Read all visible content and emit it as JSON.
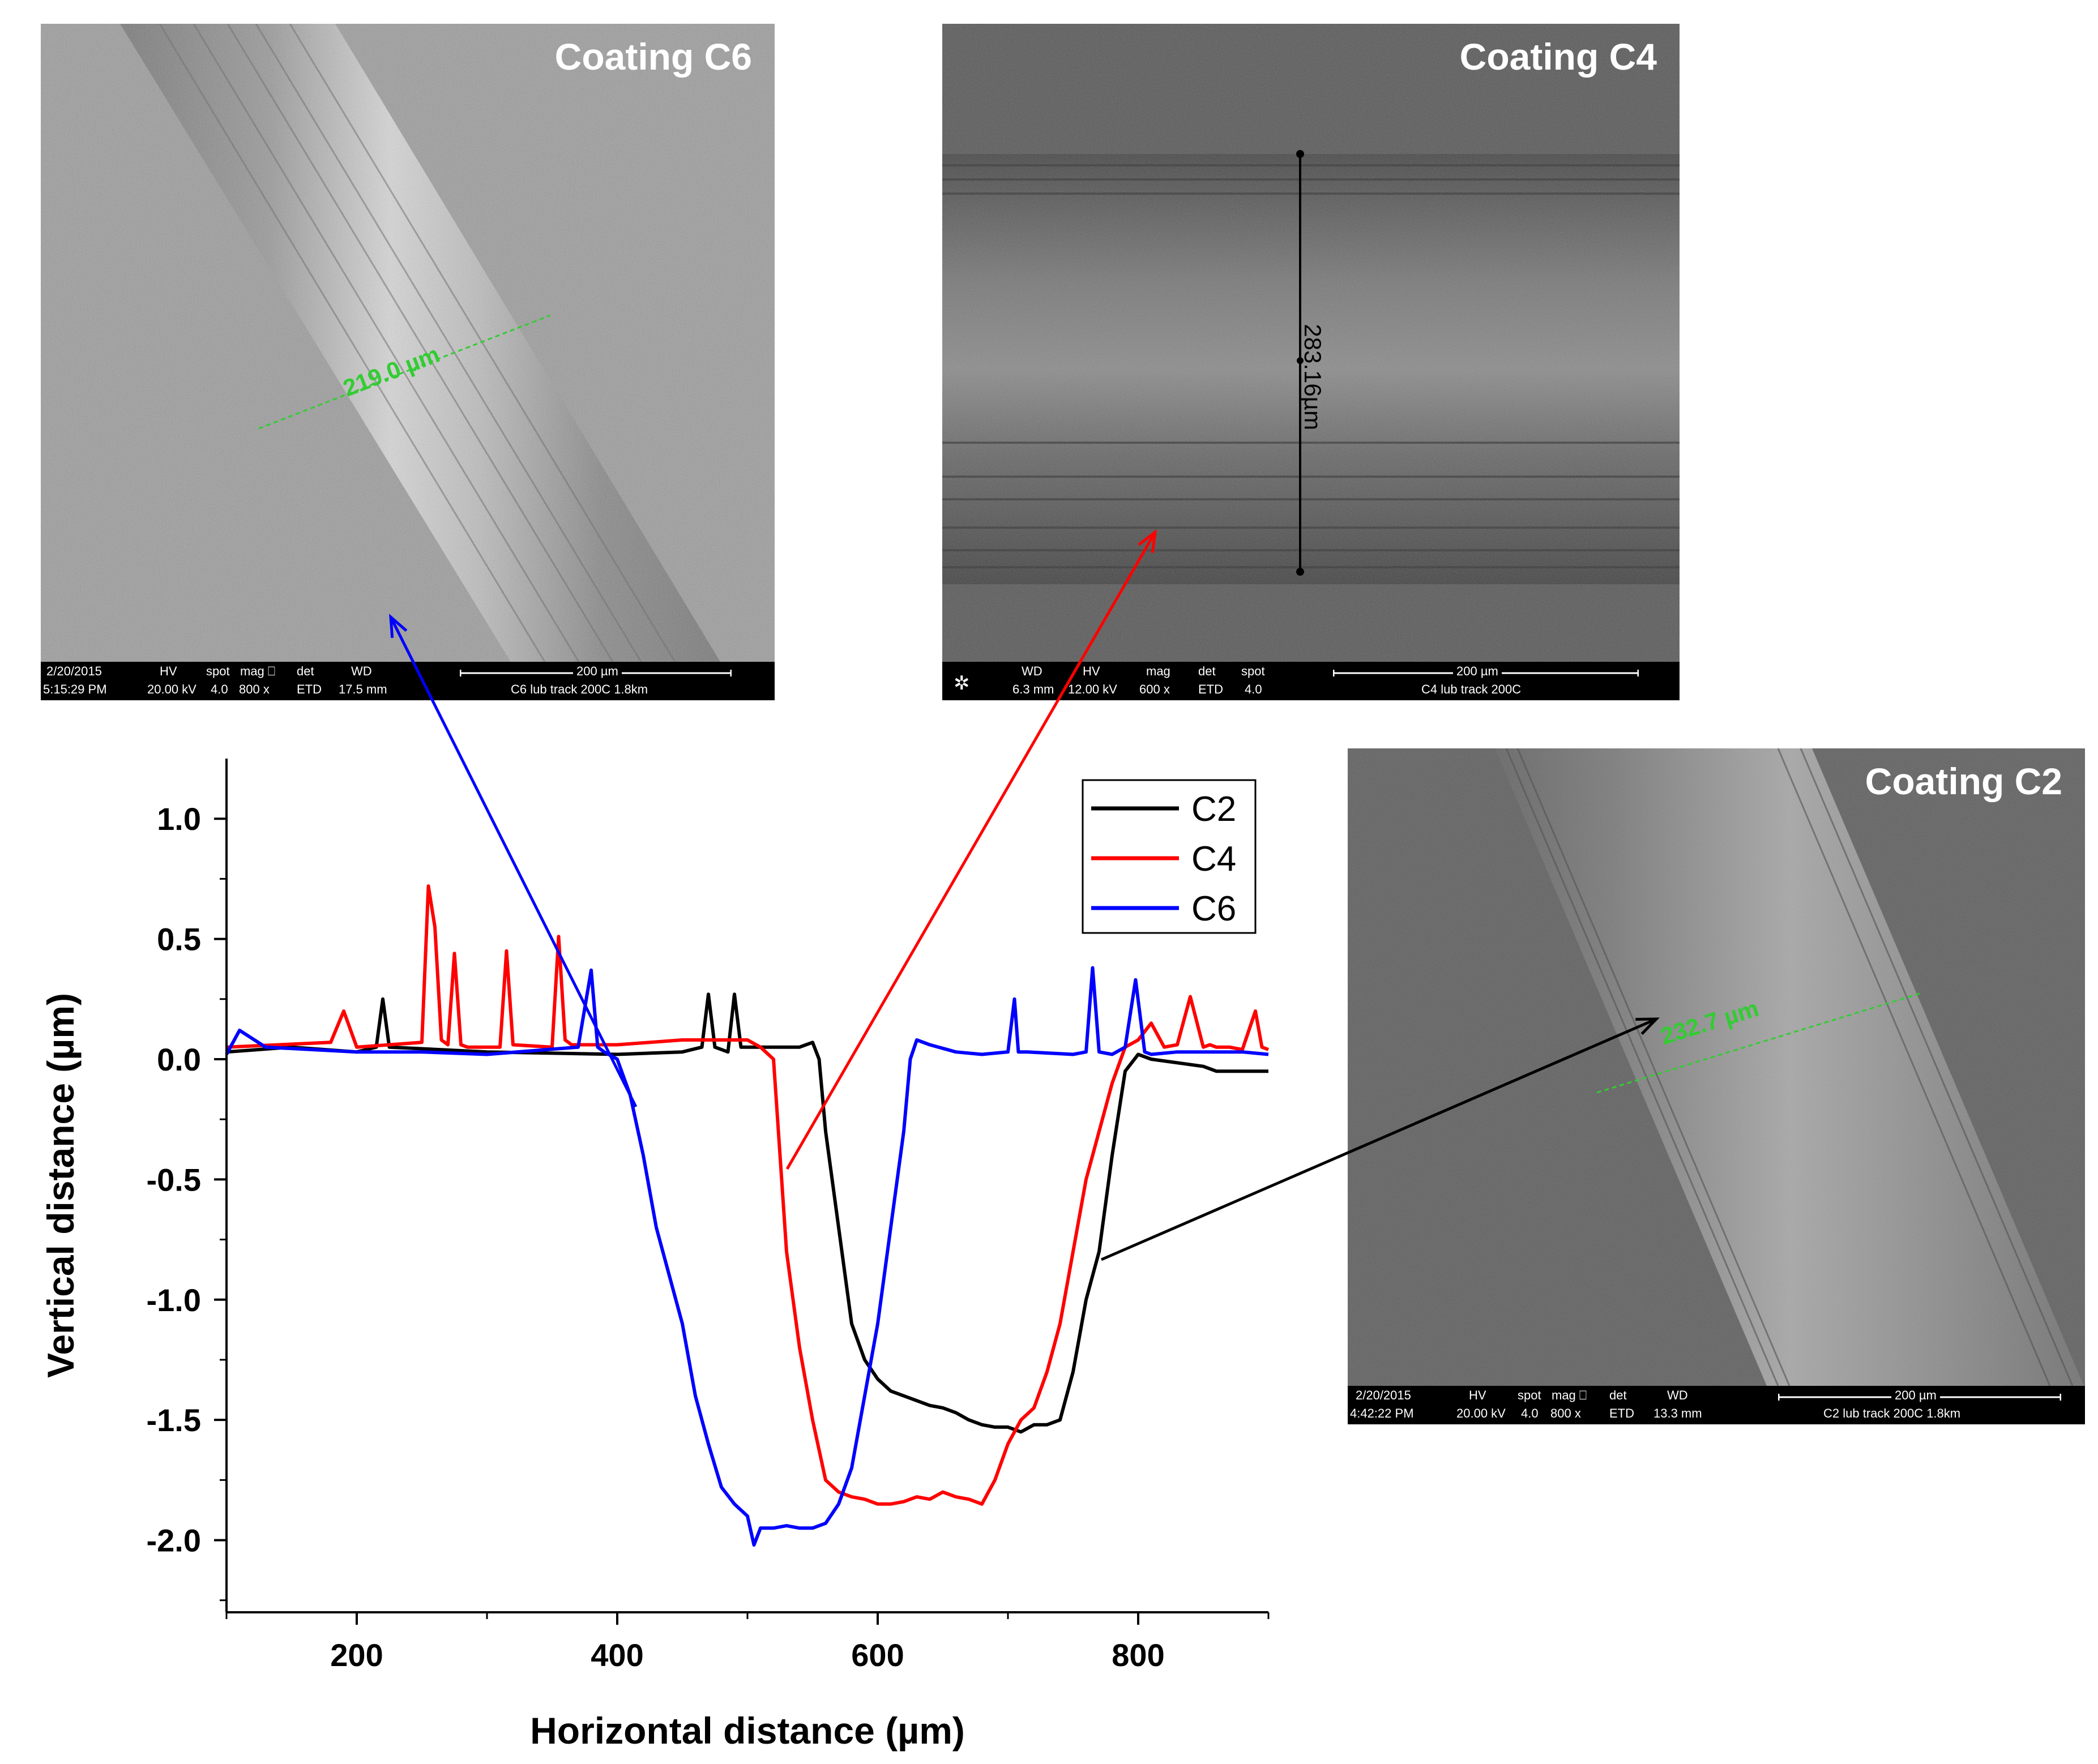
{
  "chart_data": {
    "type": "line",
    "xlabel": "Horizontal distance (µm)",
    "ylabel": "Vertical distance (µm)",
    "xlim": [
      100,
      900
    ],
    "ylim": [
      -2.3,
      1.25
    ],
    "xticks": [
      200,
      400,
      600,
      800
    ],
    "xtick_labels": [
      "200",
      "400",
      "600",
      "800"
    ],
    "yticks": [
      1.0,
      0.5,
      0.0,
      -0.5,
      -1.0,
      -1.5,
      -2.0
    ],
    "ytick_labels": [
      "1.0",
      "0.5",
      "0.0",
      "-0.5",
      "-1.0",
      "-1.5",
      "-2.0"
    ],
    "legend_position": "top-right",
    "series": [
      {
        "name": "C2",
        "color": "#000000",
        "x": [
          100,
          150,
          200,
          215,
          220,
          225,
          300,
          400,
          450,
          465,
          470,
          475,
          485,
          490,
          495,
          540,
          550,
          555,
          560,
          570,
          580,
          590,
          600,
          610,
          620,
          630,
          640,
          650,
          660,
          670,
          680,
          690,
          700,
          710,
          720,
          730,
          740,
          750,
          760,
          770,
          780,
          790,
          800,
          810,
          850,
          860,
          900
        ],
        "y": [
          0.03,
          0.05,
          0.03,
          0.05,
          0.25,
          0.05,
          0.03,
          0.02,
          0.03,
          0.05,
          0.27,
          0.05,
          0.03,
          0.27,
          0.05,
          0.05,
          0.07,
          0.0,
          -0.3,
          -0.7,
          -1.1,
          -1.25,
          -1.33,
          -1.38,
          -1.4,
          -1.42,
          -1.44,
          -1.45,
          -1.47,
          -1.5,
          -1.52,
          -1.53,
          -1.53,
          -1.55,
          -1.52,
          -1.52,
          -1.5,
          -1.3,
          -1.0,
          -0.8,
          -0.4,
          -0.05,
          0.02,
          0.0,
          -0.03,
          -0.05,
          -0.05
        ]
      },
      {
        "name": "C4",
        "color": "#ff0000",
        "x": [
          100,
          180,
          190,
          200,
          250,
          255,
          260,
          265,
          270,
          275,
          280,
          285,
          310,
          315,
          320,
          350,
          355,
          360,
          365,
          400,
          450,
          500,
          510,
          520,
          525,
          530,
          540,
          550,
          560,
          570,
          580,
          590,
          600,
          610,
          620,
          630,
          640,
          650,
          660,
          670,
          680,
          690,
          700,
          710,
          720,
          730,
          740,
          750,
          760,
          770,
          780,
          790,
          800,
          810,
          820,
          830,
          840,
          850,
          855,
          860,
          870,
          880,
          890,
          895,
          900
        ],
        "y": [
          0.05,
          0.07,
          0.2,
          0.05,
          0.07,
          0.72,
          0.55,
          0.08,
          0.06,
          0.44,
          0.06,
          0.05,
          0.05,
          0.45,
          0.06,
          0.05,
          0.51,
          0.08,
          0.06,
          0.06,
          0.08,
          0.08,
          0.05,
          0.0,
          -0.4,
          -0.8,
          -1.2,
          -1.5,
          -1.75,
          -1.8,
          -1.82,
          -1.83,
          -1.85,
          -1.85,
          -1.84,
          -1.82,
          -1.83,
          -1.8,
          -1.82,
          -1.83,
          -1.85,
          -1.75,
          -1.6,
          -1.5,
          -1.45,
          -1.3,
          -1.1,
          -0.8,
          -0.5,
          -0.3,
          -0.1,
          0.05,
          0.08,
          0.15,
          0.05,
          0.06,
          0.26,
          0.05,
          0.06,
          0.05,
          0.05,
          0.04,
          0.2,
          0.05,
          0.04
        ]
      },
      {
        "name": "C6",
        "color": "#0000ff",
        "x": [
          100,
          110,
          130,
          200,
          250,
          300,
          370,
          380,
          385,
          390,
          400,
          410,
          420,
          430,
          440,
          450,
          460,
          470,
          480,
          490,
          500,
          505,
          510,
          520,
          530,
          540,
          550,
          560,
          570,
          580,
          590,
          600,
          610,
          620,
          625,
          630,
          640,
          660,
          680,
          700,
          705,
          708,
          715,
          750,
          760,
          765,
          770,
          780,
          790,
          798,
          805,
          810,
          830,
          850,
          880,
          900
        ],
        "y": [
          0.02,
          0.12,
          0.05,
          0.03,
          0.03,
          0.02,
          0.05,
          0.37,
          0.05,
          0.03,
          0.0,
          -0.15,
          -0.4,
          -0.7,
          -0.9,
          -1.1,
          -1.4,
          -1.6,
          -1.78,
          -1.85,
          -1.9,
          -2.02,
          -1.95,
          -1.95,
          -1.94,
          -1.95,
          -1.95,
          -1.93,
          -1.85,
          -1.7,
          -1.4,
          -1.1,
          -0.7,
          -0.3,
          0.0,
          0.08,
          0.06,
          0.03,
          0.02,
          0.03,
          0.25,
          0.03,
          0.03,
          0.02,
          0.03,
          0.38,
          0.03,
          0.02,
          0.05,
          0.33,
          0.03,
          0.02,
          0.03,
          0.03,
          0.03,
          0.02
        ]
      }
    ]
  },
  "images": [
    {
      "id": "c6",
      "title": "Coating C6",
      "measurement": "219.0 µm",
      "measure_color": "#33cc33",
      "infobar": {
        "date": "2/20/2015",
        "time": "5:15:29 PM",
        "hv_label": "HV",
        "hv": "20.00 kV",
        "spot_label": "spot",
        "spot": "4.0",
        "mag_label": "mag ⎕",
        "mag": "800 x",
        "det_label": "det",
        "det": "ETD",
        "wd_label": "WD",
        "wd": "17.5 mm",
        "scale": "200 µm",
        "sample": "C6 lub track 200C 1.8km"
      }
    },
    {
      "id": "c4",
      "title": "Coating C4",
      "measurement": "283.16µm",
      "measure_color": "#000000",
      "infobar": {
        "wd_label": "WD",
        "wd": "6.3 mm",
        "hv_label": "HV",
        "hv": "12.00 kV",
        "mag_label": "mag",
        "mag": "600 x",
        "det_label": "det",
        "det": "ETD",
        "spot_label": "spot",
        "spot": "4.0",
        "scale": "200 µm",
        "sample": "C4 lub track 200C"
      }
    },
    {
      "id": "c2",
      "title": "Coating C2",
      "measurement": "232.7 µm",
      "measure_color": "#33cc33",
      "infobar": {
        "date": "2/20/2015",
        "time": "4:42:22 PM",
        "hv_label": "HV",
        "hv": "20.00 kV",
        "spot_label": "spot",
        "spot": "4.0",
        "mag_label": "mag ⎕",
        "mag": "800 x",
        "det_label": "det",
        "det": "ETD",
        "wd_label": "WD",
        "wd": "13.3 mm",
        "scale": "200 µm",
        "sample": "C2 lub track 200C 1.8km"
      }
    }
  ],
  "colors": {
    "c2": "#000000",
    "c4": "#ff0000",
    "c6": "#0000ff"
  }
}
